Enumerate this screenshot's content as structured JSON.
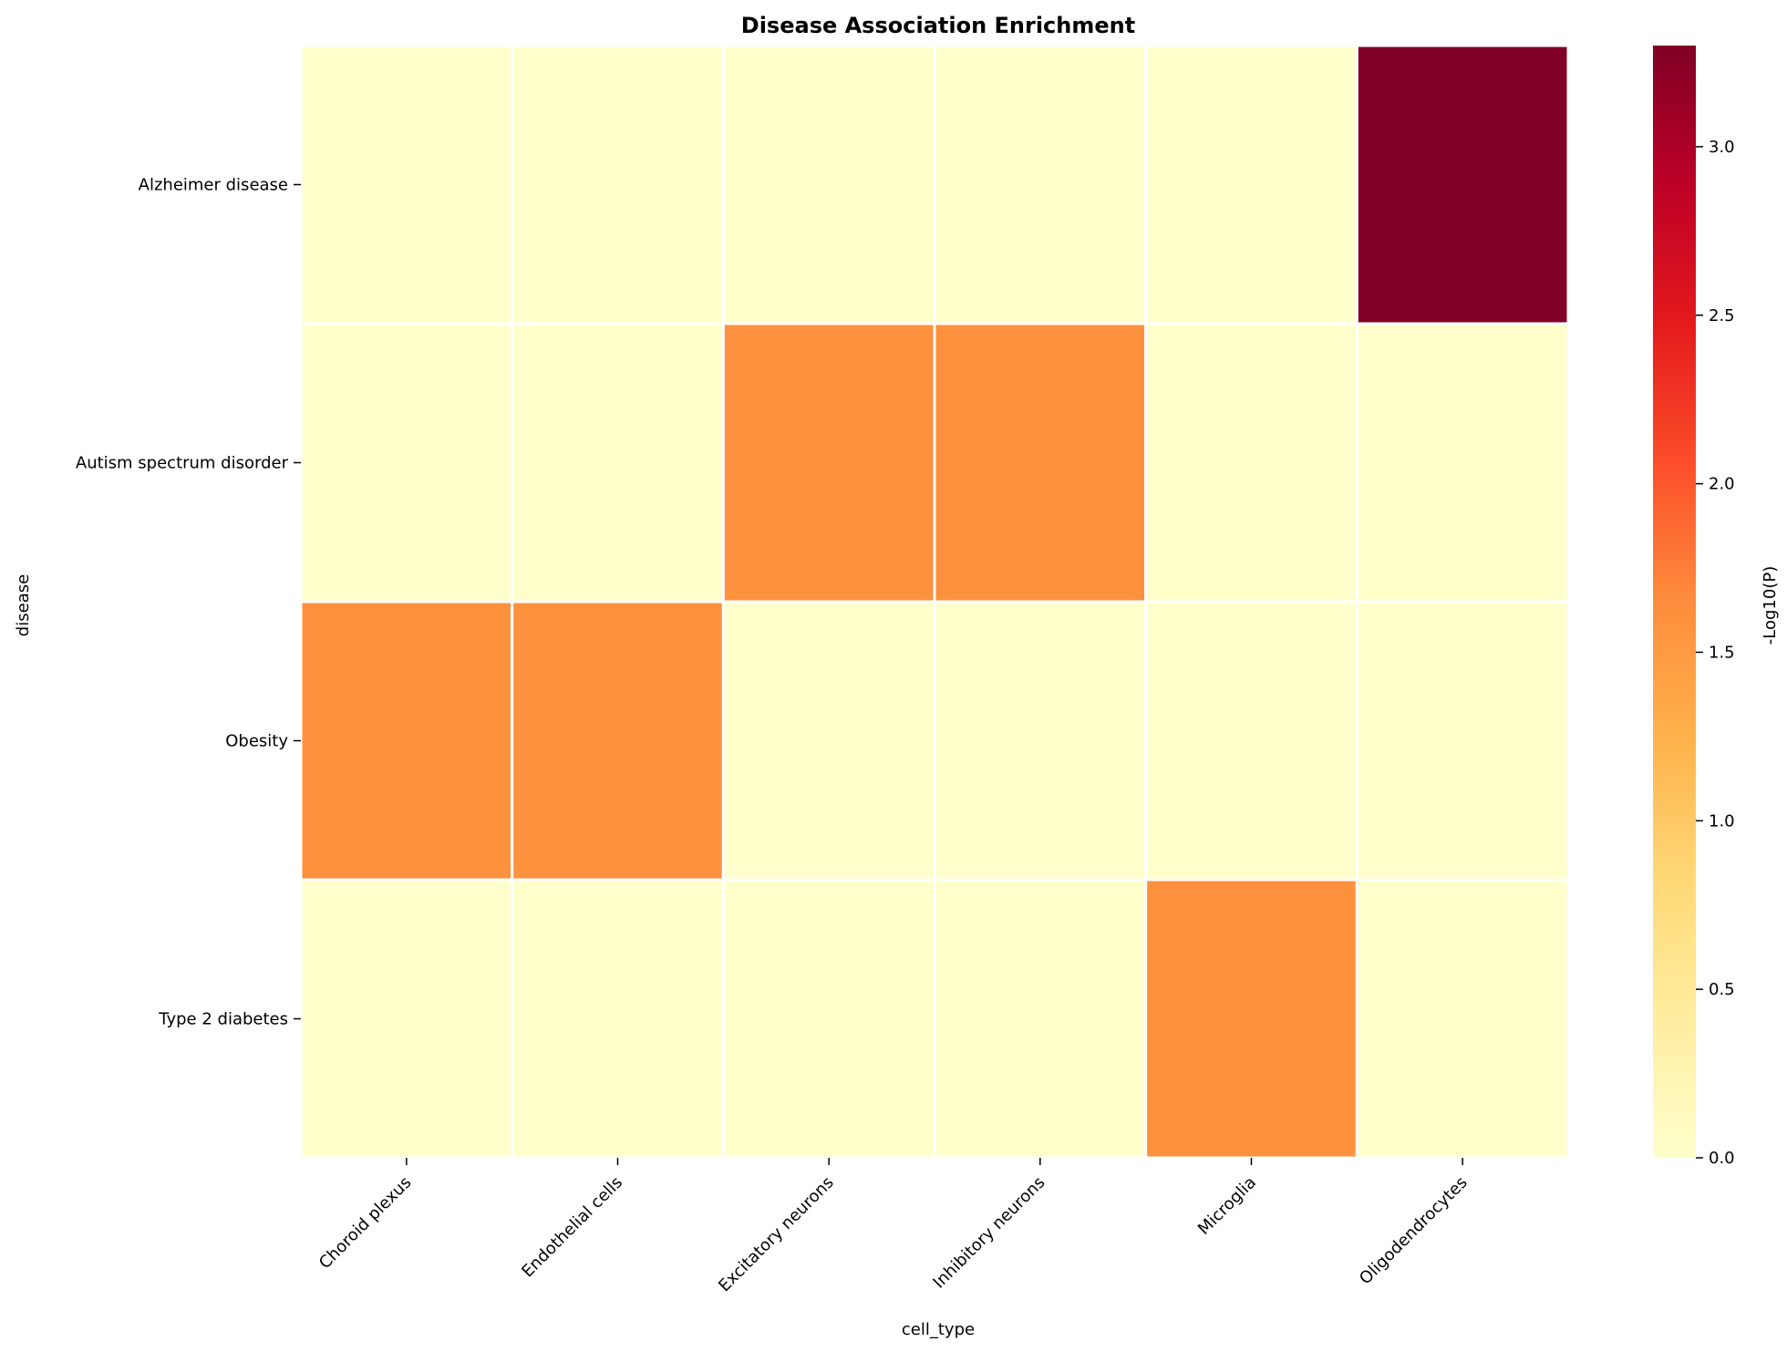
{
  "chart_data": {
    "type": "heatmap",
    "title": "Disease Association Enrichment",
    "xlabel": "cell_type",
    "ylabel": "disease",
    "x_categories": [
      "Choroid plexus",
      "Endothelial cells",
      "Excitatory neurons",
      "Inhibitory neurons",
      "Microglia",
      "Oligodendrocytes"
    ],
    "y_categories": [
      "Alzheimer disease",
      "Autism spectrum disorder",
      "Obesity",
      "Type 2 diabetes"
    ],
    "values": [
      [
        0,
        0,
        0,
        0,
        0,
        3.3
      ],
      [
        0,
        0,
        1.6,
        1.6,
        0,
        0
      ],
      [
        1.6,
        1.6,
        0,
        0,
        0,
        0
      ],
      [
        0,
        0,
        0,
        0,
        1.6,
        0
      ]
    ],
    "colorbar": {
      "label": "-Log10(P)",
      "colormap": "YlOrRd",
      "range": [
        0,
        3.3
      ],
      "ticks": [
        0.0,
        0.5,
        1.0,
        1.5,
        2.0,
        2.5,
        3.0
      ],
      "tick_labels": [
        "0.0",
        "0.5",
        "1.0",
        "1.5",
        "2.0",
        "2.5",
        "3.0"
      ]
    },
    "grid": true,
    "cell_border_color": "#ffffff"
  }
}
